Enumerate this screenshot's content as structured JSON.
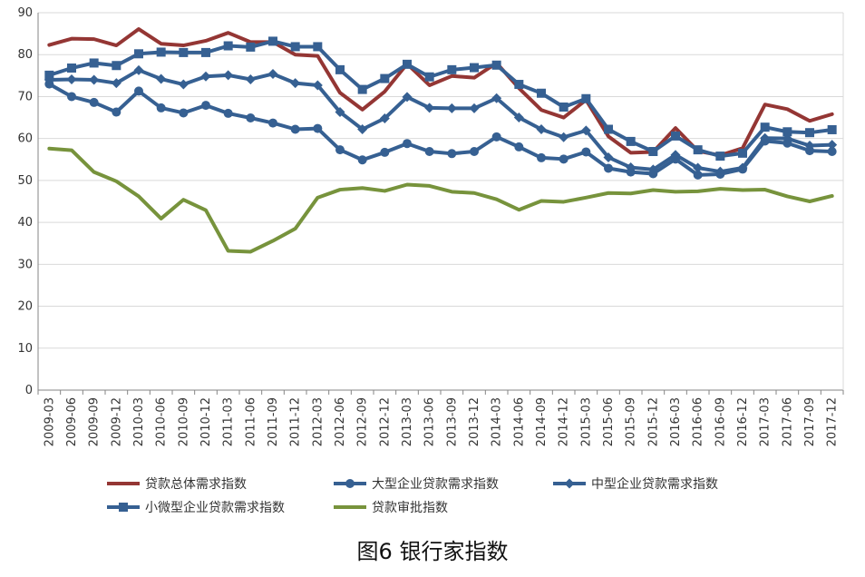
{
  "caption": "图6 银行家指数",
  "chart_data": {
    "type": "line",
    "title": "",
    "xlabel": "",
    "ylabel": "",
    "ylim": [
      0,
      90
    ],
    "yticks": [
      0,
      10,
      20,
      30,
      40,
      50,
      60,
      70,
      80,
      90
    ],
    "grid": true,
    "legend_position": "bottom",
    "categories": [
      "2009-03",
      "2009-06",
      "2009-09",
      "2009-12",
      "2010-03",
      "2010-06",
      "2010-09",
      "2010-12",
      "2011-03",
      "2011-06",
      "2011-09",
      "2011-12",
      "2012-03",
      "2012-06",
      "2012-09",
      "2012-12",
      "2013-03",
      "2013-06",
      "2013-09",
      "2013-12",
      "2014-03",
      "2014-06",
      "2014-09",
      "2014-12",
      "2015-03",
      "2015-06",
      "2015-09",
      "2015-12",
      "2016-03",
      "2016-06",
      "2016-09",
      "2016-12",
      "2017-03",
      "2017-06",
      "2017-09",
      "2017-12"
    ],
    "series": [
      {
        "name": "贷款总体需求指数",
        "color": "#943634",
        "marker": "none",
        "values": [
          82.3,
          83.8,
          83.7,
          82.2,
          86.1,
          82.6,
          82.2,
          83.3,
          85.2,
          83.0,
          83.0,
          80.0,
          79.7,
          70.9,
          66.9,
          71.2,
          77.8,
          72.7,
          74.9,
          74.5,
          78.0,
          72.0,
          66.8,
          65.0,
          69.2,
          60.5,
          56.6,
          56.8,
          62.5,
          57.0,
          56.0,
          57.7,
          68.1,
          67.0,
          64.2,
          65.8
        ]
      },
      {
        "name": "大型企业贷款需求指数",
        "color": "#366092",
        "marker": "circle",
        "values": [
          73.0,
          70.0,
          68.6,
          66.3,
          71.3,
          67.3,
          66.1,
          67.9,
          66.0,
          64.9,
          63.7,
          62.2,
          62.4,
          57.3,
          54.9,
          56.7,
          58.8,
          56.9,
          56.4,
          56.9,
          60.4,
          58.0,
          55.4,
          55.1,
          56.8,
          52.9,
          52.0,
          51.6,
          55.1,
          51.3,
          51.5,
          52.7,
          59.4,
          58.9,
          57.1,
          56.9
        ]
      },
      {
        "name": "中型企业贷款需求指数",
        "color": "#366092",
        "marker": "diamond",
        "values": [
          74.0,
          74.1,
          74.0,
          73.2,
          76.3,
          74.2,
          72.9,
          74.8,
          75.1,
          74.1,
          75.4,
          73.2,
          72.7,
          66.3,
          62.2,
          64.8,
          69.9,
          67.3,
          67.2,
          67.2,
          69.6,
          65.0,
          62.2,
          60.3,
          61.9,
          55.5,
          53.1,
          52.6,
          56.1,
          53.0,
          52.1,
          53.0,
          60.1,
          60.0,
          58.3,
          58.5
        ]
      },
      {
        "name": "小微型企业贷款需求指数",
        "color": "#366092",
        "marker": "square",
        "values": [
          75.1,
          76.8,
          78.0,
          77.4,
          80.2,
          80.6,
          80.5,
          80.5,
          82.1,
          81.8,
          83.2,
          81.9,
          81.9,
          76.4,
          71.7,
          74.3,
          77.7,
          74.7,
          76.4,
          76.9,
          77.5,
          72.9,
          70.8,
          67.5,
          69.5,
          62.2,
          59.3,
          56.9,
          60.6,
          57.3,
          55.8,
          56.5,
          62.7,
          61.6,
          61.4,
          62.1
        ]
      },
      {
        "name": "贷款审批指数",
        "color": "#77933c",
        "marker": "none",
        "values": [
          57.6,
          57.2,
          52.0,
          49.8,
          46.2,
          40.9,
          45.4,
          42.9,
          33.2,
          33.0,
          35.6,
          38.5,
          45.9,
          47.8,
          48.2,
          47.5,
          49.0,
          48.7,
          47.3,
          47.0,
          45.5,
          43.0,
          45.1,
          44.9,
          45.9,
          47.0,
          46.9,
          47.7,
          47.3,
          47.4,
          48.0,
          47.7,
          47.8,
          46.2,
          45.0,
          46.3
        ]
      }
    ]
  }
}
